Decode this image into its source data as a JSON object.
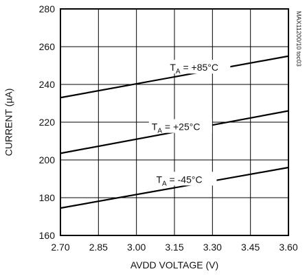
{
  "chart_data": {
    "type": "line",
    "title": "",
    "xlabel": "AVDD VOLTAGE (V)",
    "ylabel": "CURRENT (µA)",
    "xlim": [
      2.7,
      3.6
    ],
    "ylim": [
      160,
      280
    ],
    "x_ticks": [
      "2.70",
      "2.85",
      "3.00",
      "3.15",
      "3.30",
      "3.45",
      "3.60"
    ],
    "y_ticks": [
      "160",
      "180",
      "200",
      "220",
      "240",
      "260",
      "280"
    ],
    "grid": true,
    "series": [
      {
        "name_main": "T",
        "name_sub": "A",
        "name_rest": " = +85°C",
        "x": [
          2.7,
          3.6
        ],
        "y": [
          233,
          255
        ]
      },
      {
        "name_main": "T",
        "name_sub": "A",
        "name_rest": " = +25°C",
        "x": [
          2.7,
          3.6
        ],
        "y": [
          203.5,
          226
        ]
      },
      {
        "name_main": "T",
        "name_sub": "A",
        "name_rest": " = -45°C",
        "x": [
          2.7,
          3.6
        ],
        "y": [
          174.5,
          196
        ]
      }
    ],
    "side_note": "MAX11200/10 toc03"
  }
}
